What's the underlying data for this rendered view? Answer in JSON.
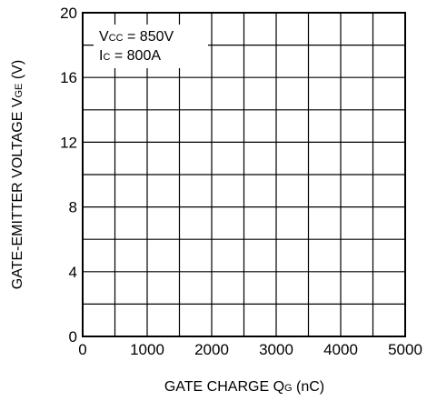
{
  "chart_data": {
    "type": "line",
    "title": "",
    "xlabel": {
      "main": "GATE CHARGE Q",
      "sub": "G",
      "unit": " (nC)"
    },
    "ylabel": {
      "main": "GATE-EMITTER VOLTAGE V",
      "sub": "GE",
      "unit": " (V)"
    },
    "xlim": [
      0,
      5000
    ],
    "ylim": [
      0,
      20
    ],
    "x_ticks": [
      "0",
      "1000",
      "2000",
      "3000",
      "4000",
      "5000"
    ],
    "y_ticks": [
      "0",
      "4",
      "8",
      "12",
      "16",
      "20"
    ],
    "x_minor_step": 500,
    "y_minor_step": 2,
    "grid": true,
    "annotations": [
      {
        "main": "V",
        "sub": "CC",
        "rest": " = 850V"
      },
      {
        "main": "I",
        "sub": "C",
        "rest": " = 800A"
      }
    ],
    "series": []
  }
}
